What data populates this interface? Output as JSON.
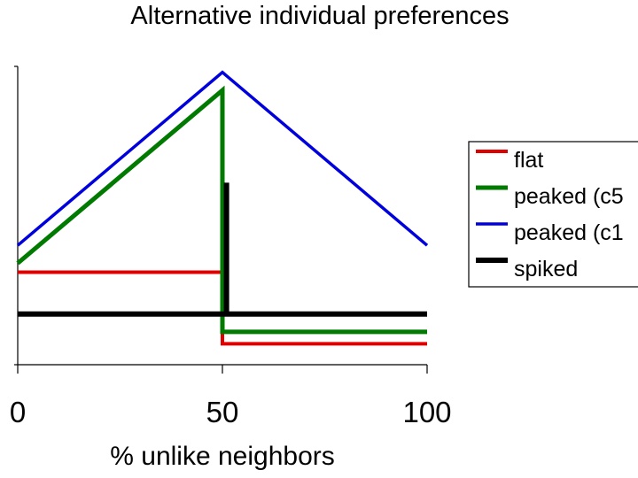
{
  "chart_data": {
    "type": "line",
    "title": "Alternative individual preferences",
    "xlabel": "% unlike neighbors",
    "ylabel": "",
    "xlim": [
      0,
      100
    ],
    "ylim": [
      0,
      1
    ],
    "x_ticks": [
      "0",
      "50",
      "100"
    ],
    "legend_position": "right",
    "series": [
      {
        "name": "flat",
        "color": "#e00000",
        "points": [
          [
            0,
            0.31
          ],
          [
            50,
            0.31
          ],
          [
            50,
            0.07
          ],
          [
            100,
            0.07
          ]
        ]
      },
      {
        "name": "peaked (c5",
        "color": "#007a00",
        "points": [
          [
            0,
            0.34
          ],
          [
            50,
            0.92
          ],
          [
            50,
            0.11
          ],
          [
            100,
            0.11
          ]
        ]
      },
      {
        "name": "peaked (c1",
        "color": "#0000dd",
        "points": [
          [
            0,
            0.4
          ],
          [
            50,
            0.98
          ],
          [
            100,
            0.4
          ]
        ]
      },
      {
        "name": "spiked",
        "color": "#000000",
        "points": [
          [
            0,
            0.17
          ],
          [
            51,
            0.17
          ],
          [
            51,
            0.61
          ],
          [
            51,
            0.17
          ],
          [
            100,
            0.17
          ]
        ]
      }
    ]
  }
}
